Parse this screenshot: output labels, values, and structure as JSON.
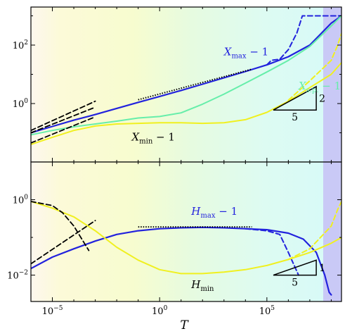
{
  "chart_data": [
    {
      "type": "line",
      "panel": "top",
      "xscale": "log",
      "yscale": "log",
      "xlim": [
        1e-06,
        300000000
      ],
      "ylim": [
        0.01,
        2000
      ],
      "xticks": [
        1e-05,
        1,
        100000
      ],
      "yticks": [
        {
          "value": 1,
          "label": "10^0"
        },
        {
          "value": 100,
          "label": "10^2"
        }
      ],
      "annotations": [
        {
          "text": "X",
          "sub": "max",
          "suffix": " − 1",
          "x": 1000,
          "y": 45,
          "color": "#2222dd"
        },
        {
          "text": "X",
          "sub": "s.p.",
          "suffix": " − 1",
          "x": 3000000,
          "y": 3,
          "color": "#66eeaa"
        },
        {
          "text": "X",
          "sub": "min",
          "suffix": " − 1",
          "x": 0.05,
          "y": 0.055,
          "color": "#000000"
        }
      ],
      "slope_triangle": {
        "run_label": "5",
        "rise_label": "2",
        "x0": 200000,
        "x1": 20000000,
        "y0": 0.6,
        "y1": 3.8
      },
      "series": [
        {
          "key": "xmax",
          "color": "#2222dd",
          "style": "solid",
          "width": 2.2,
          "x": [
            1e-06,
            1e-05,
            0.0001,
            0.001,
            0.01,
            0.1,
            1,
            10,
            100,
            1000,
            10000,
            100000,
            1000000,
            10000000,
            100000000,
            300000000
          ],
          "y": [
            0.1,
            0.165,
            0.27,
            0.42,
            0.68,
            1.1,
            1.75,
            2.8,
            4.6,
            7.6,
            12.5,
            21,
            40,
            100,
            560,
            1000
          ]
        },
        {
          "key": "xmax-dashed",
          "color": "#2222dd",
          "style": "dashed",
          "width": 2,
          "x": [
            100000,
            160000,
            400000,
            1000000,
            2500000,
            4500000,
            100000000,
            300000000
          ],
          "y": [
            21,
            30,
            33,
            70,
            260,
            1000,
            1000,
            1000
          ]
        },
        {
          "key": "xsp",
          "color": "#66eeaa",
          "style": "solid",
          "width": 2,
          "x": [
            1e-06,
            1e-05,
            0.0001,
            0.001,
            0.01,
            0.1,
            1,
            10,
            100,
            1000,
            10000,
            100000,
            1000000,
            10000000,
            100000000,
            300000000
          ],
          "y": [
            0.085,
            0.12,
            0.16,
            0.2,
            0.25,
            0.32,
            0.36,
            0.48,
            0.95,
            2.1,
            5,
            12,
            30,
            90,
            450,
            1000
          ]
        },
        {
          "key": "xmin",
          "color": "#f0f020",
          "style": "solid",
          "width": 2,
          "x": [
            1e-06,
            1e-05,
            0.0001,
            0.001,
            0.01,
            0.1,
            1,
            10,
            100,
            1000,
            10000,
            100000,
            1000000,
            10000000,
            100000000,
            300000000
          ],
          "y": [
            0.04,
            0.07,
            0.12,
            0.17,
            0.2,
            0.21,
            0.22,
            0.22,
            0.21,
            0.22,
            0.28,
            0.5,
            1.2,
            3.5,
            10,
            25
          ]
        },
        {
          "key": "xmin-dashed",
          "color": "#f0f020",
          "style": "dashed",
          "width": 2,
          "x": [
            1000000,
            10000000,
            100000000,
            200000000,
            300000000
          ],
          "y": [
            1.3,
            6,
            30,
            100,
            250
          ]
        },
        {
          "key": "fit-xmax",
          "color": "#000000",
          "style": "dashed",
          "width": 1.8,
          "x": [
            1e-06,
            0.001
          ],
          "y": [
            0.12,
            1.2
          ]
        },
        {
          "key": "fit-xsp",
          "color": "#000000",
          "style": "dashed",
          "width": 1.8,
          "x": [
            1e-06,
            0.001
          ],
          "y": [
            0.1,
            0.75
          ]
        },
        {
          "key": "fit-xmin",
          "color": "#000000",
          "style": "dashed",
          "width": 1.8,
          "x": [
            1e-06,
            0.001
          ],
          "y": [
            0.045,
            0.35
          ]
        },
        {
          "key": "fit-xmax-dotted",
          "color": "#000000",
          "style": "dotted",
          "width": 2,
          "x": [
            0.1,
            20000
          ],
          "y": [
            1.35,
            15
          ]
        }
      ]
    },
    {
      "type": "line",
      "panel": "bottom",
      "xscale": "log",
      "yscale": "log",
      "xlim": [
        1e-06,
        300000000
      ],
      "ylim": [
        0.002,
        10
      ],
      "xticks": [
        {
          "value": 1e-05,
          "label": "10^-5"
        },
        {
          "value": 1,
          "label": "10^0"
        },
        {
          "value": 100000,
          "label": "10^5"
        }
      ],
      "yticks": [
        {
          "value": 0.01,
          "label": "10^-2"
        },
        {
          "value": 1,
          "label": "10^0"
        }
      ],
      "xlabel": "T",
      "annotations": [
        {
          "text": "H",
          "sub": "max",
          "suffix": " − 1",
          "x": 30,
          "y": 0.4,
          "color": "#2222dd"
        },
        {
          "text": "H",
          "sub": "min",
          "suffix": "",
          "x": 30,
          "y": 0.0045,
          "color": "#000000"
        }
      ],
      "slope_triangle": {
        "run_label": "5",
        "rise_label": "1",
        "x0": 200000,
        "x1": 20000000,
        "y0": 0.01,
        "y1": 0.025
      },
      "series": [
        {
          "key": "hmax",
          "color": "#2222dd",
          "style": "solid",
          "width": 2.2,
          "x": [
            1e-06,
            1e-05,
            0.0001,
            0.001,
            0.01,
            0.1,
            1,
            10,
            100,
            1000,
            10000,
            100000,
            1000000,
            5000000,
            20000000,
            50000000,
            80000000,
            100000000
          ],
          "y": [
            0.015,
            0.03,
            0.05,
            0.08,
            0.12,
            0.15,
            0.17,
            0.18,
            0.185,
            0.18,
            0.17,
            0.16,
            0.13,
            0.09,
            0.04,
            0.01,
            0.0035,
            0.003
          ]
        },
        {
          "key": "hmax-dashed",
          "color": "#2222dd",
          "style": "dashed",
          "width": 2,
          "x": [
            10000,
            100000,
            400000,
            1000000,
            3000000
          ],
          "y": [
            0.17,
            0.15,
            0.12,
            0.04,
            0.01
          ]
        },
        {
          "key": "hmin",
          "color": "#f0f020",
          "style": "solid",
          "width": 2,
          "x": [
            1e-06,
            1e-05,
            0.0001,
            0.001,
            0.01,
            0.1,
            1,
            10,
            100,
            1000,
            10000,
            100000,
            1000000,
            10000000,
            100000000,
            300000000
          ],
          "y": [
            0.9,
            0.6,
            0.35,
            0.15,
            0.055,
            0.025,
            0.014,
            0.011,
            0.011,
            0.012,
            0.014,
            0.018,
            0.026,
            0.04,
            0.07,
            0.1
          ]
        },
        {
          "key": "hmin-dashed",
          "color": "#f0f020",
          "style": "dashed",
          "width": 2,
          "x": [
            1000000,
            10000000,
            100000000,
            200000000,
            300000000
          ],
          "y": [
            0.026,
            0.05,
            0.2,
            0.55,
            0.9
          ]
        },
        {
          "key": "fit-hmin",
          "color": "#000000",
          "style": "dashed",
          "width": 1.8,
          "x": [
            1e-06,
            1e-05,
            3e-05,
            0.0001,
            0.0005
          ],
          "y": [
            0.9,
            0.7,
            0.45,
            0.2,
            0.045
          ]
        },
        {
          "key": "fit-hmax",
          "color": "#000000",
          "style": "dashed",
          "width": 1.8,
          "x": [
            1e-06,
            0.001
          ],
          "y": [
            0.02,
            0.28
          ]
        },
        {
          "key": "fit-hmax-dotted",
          "color": "#000000",
          "style": "dotted",
          "width": 2,
          "x": [
            0.1,
            20000
          ],
          "y": [
            0.19,
            0.19
          ]
        }
      ]
    }
  ]
}
